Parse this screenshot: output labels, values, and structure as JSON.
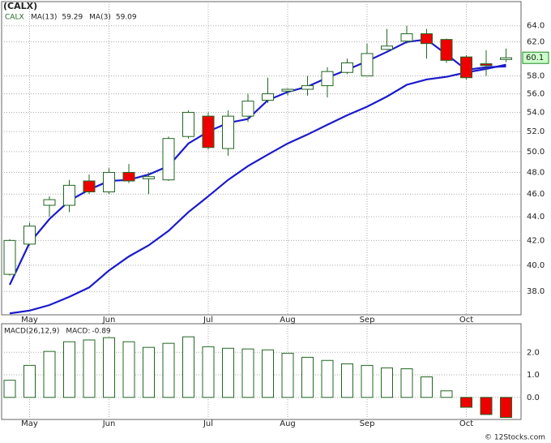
{
  "chart_data": [
    {
      "type": "candlestick",
      "title": "(CALX)",
      "ticker": "CALX",
      "categories": [
        null,
        "May",
        null,
        null,
        null,
        "Jun",
        null,
        null,
        null,
        null,
        "Jul",
        null,
        null,
        null,
        "Aug",
        null,
        null,
        null,
        "Sep",
        null,
        null,
        null,
        null,
        "Oct",
        null,
        null
      ],
      "open": [
        39.3,
        41.7,
        45.0,
        45.0,
        47.2,
        46.2,
        48.0,
        47.4,
        47.3,
        51.5,
        53.6,
        50.3,
        53.6,
        55.3,
        56.3,
        56.5,
        56.9,
        58.4,
        58.0,
        61.1,
        62.1,
        63.0,
        62.3,
        60.2,
        59.4,
        59.9
      ],
      "high": [
        42.1,
        43.5,
        45.8,
        47.3,
        47.8,
        48.4,
        48.8,
        48.0,
        51.5,
        54.2,
        54.0,
        54.2,
        56.0,
        57.8,
        56.6,
        58.0,
        59.0,
        60.0,
        61.8,
        63.6,
        64.0,
        63.6,
        62.4,
        60.4,
        61.0,
        61.2
      ],
      "low": [
        39.2,
        41.6,
        44.0,
        44.4,
        46.0,
        46.0,
        47.0,
        46.0,
        47.2,
        51.3,
        50.2,
        49.6,
        53.0,
        55.0,
        55.8,
        55.8,
        55.6,
        58.2,
        58.0,
        61.0,
        61.8,
        60.0,
        59.5,
        57.6,
        58.0,
        59.6
      ],
      "close": [
        42.0,
        43.2,
        45.5,
        46.8,
        46.2,
        48.0,
        47.2,
        47.6,
        51.3,
        54.0,
        50.4,
        53.6,
        55.2,
        56.0,
        56.5,
        56.9,
        58.5,
        59.5,
        60.6,
        61.5,
        63.0,
        61.8,
        59.8,
        57.8,
        59.2,
        60.1
      ],
      "up_color": "#ffffff",
      "down_color": "#ee0000",
      "candle_border": "#226622",
      "last_price_label": "60.1",
      "series": [
        {
          "name": "MA(13)",
          "value_label": "59.29",
          "color": "#1a1acc",
          "values": [
            36.4,
            36.6,
            37.0,
            37.6,
            38.3,
            39.6,
            40.7,
            41.6,
            42.8,
            44.4,
            45.8,
            47.3,
            48.6,
            49.7,
            50.8,
            51.7,
            52.7,
            53.7,
            54.6,
            55.7,
            57.0,
            57.6,
            57.9,
            58.4,
            58.8,
            59.29
          ]
        },
        {
          "name": "MA(3)",
          "value_label": "59.09",
          "color": "#1a1acc",
          "values": [
            38.5,
            41.8,
            43.8,
            45.4,
            46.4,
            47.2,
            47.3,
            47.8,
            48.6,
            50.8,
            52.0,
            52.9,
            53.3,
            55.3,
            56.2,
            56.8,
            57.8,
            58.7,
            59.7,
            60.8,
            62.0,
            62.3,
            60.5,
            58.7,
            59.0,
            59.09
          ]
        }
      ],
      "log_scale": true,
      "grid": true,
      "ylim": [
        36.3,
        67.1
      ],
      "yticks": [
        {
          "value": 38,
          "label": "38.0"
        },
        {
          "value": 40,
          "label": "40.0"
        },
        {
          "value": 42,
          "label": "42.0"
        },
        {
          "value": 44,
          "label": "44.0"
        },
        {
          "value": 46,
          "label": "46.0"
        },
        {
          "value": 48,
          "label": "48.0"
        },
        {
          "value": 50,
          "label": "50.0"
        },
        {
          "value": 52,
          "label": "52.0"
        },
        {
          "value": 54,
          "label": "54.0"
        },
        {
          "value": 56,
          "label": "56.0"
        },
        {
          "value": 58,
          "label": "58.0"
        },
        {
          "value": 62,
          "label": "62.0"
        },
        {
          "value": 64,
          "label": "64.0"
        }
      ]
    },
    {
      "type": "bar",
      "title": "MACD(26,12,9)",
      "value_name": "MACD:",
      "value_label": "-0.89",
      "categories": [
        null,
        "May",
        null,
        null,
        null,
        "Jun",
        null,
        null,
        null,
        null,
        "Jul",
        null,
        null,
        null,
        "Aug",
        null,
        null,
        null,
        "Sep",
        null,
        null,
        null,
        null,
        "Oct",
        null,
        null
      ],
      "values": [
        0.76,
        1.42,
        2.04,
        2.47,
        2.55,
        2.65,
        2.47,
        2.22,
        2.4,
        2.69,
        2.25,
        2.18,
        2.15,
        2.11,
        1.96,
        1.78,
        1.64,
        1.49,
        1.42,
        1.31,
        1.27,
        0.91,
        0.29,
        -0.44,
        -0.76,
        -0.89
      ],
      "positive_color": "#ffffff",
      "negative_color": "#ee0000",
      "border_color": "#226622",
      "grid": true,
      "ylim": [
        -0.98,
        3.27
      ],
      "yticks": [
        {
          "value": 0,
          "label": "0.0"
        },
        {
          "value": 1,
          "label": "1.0"
        },
        {
          "value": 2,
          "label": "2.0"
        }
      ]
    }
  ],
  "footer": "© 12Stocks.com"
}
